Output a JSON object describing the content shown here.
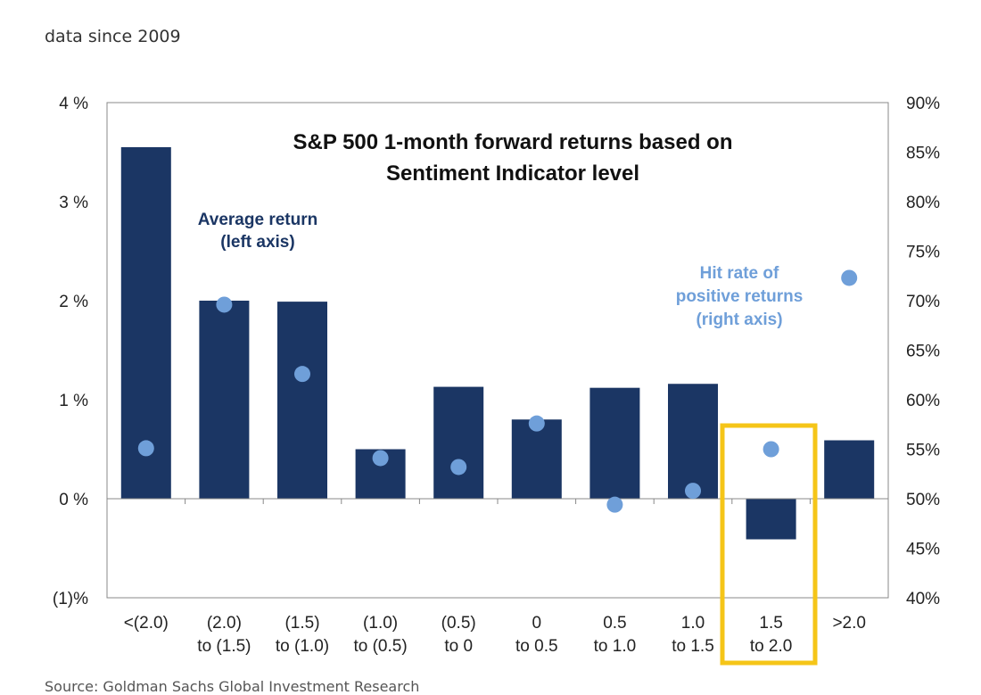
{
  "header": {
    "subtitle": "data since 2009"
  },
  "footer": {
    "source": "Source: Goldman Sachs Global Investment Research"
  },
  "colors": {
    "bar": "#1b3664",
    "dot": "#6f9fd9",
    "highlight": "#f5c518",
    "axis": "#888888"
  },
  "chart_data": {
    "type": "bar",
    "title_lines": [
      "S&P 500 1-month forward returns based on",
      "Sentiment Indicator level"
    ],
    "categories": [
      [
        "<(2.0)"
      ],
      [
        "(2.0)",
        "to (1.5)"
      ],
      [
        "(1.5)",
        "to (1.0)"
      ],
      [
        "(1.0)",
        "to (0.5)"
      ],
      [
        "(0.5)",
        "to 0"
      ],
      [
        "0",
        "to 0.5"
      ],
      [
        "0.5",
        "to 1.0"
      ],
      [
        "1.0",
        "to 1.5"
      ],
      [
        "1.5",
        "to 2.0"
      ],
      [
        ">2.0"
      ]
    ],
    "series": [
      {
        "name": "Average return (left axis)",
        "axis": "left",
        "kind": "bar",
        "values": [
          3.55,
          2.0,
          1.99,
          0.5,
          1.13,
          0.8,
          1.12,
          1.16,
          -0.41,
          0.59
        ]
      },
      {
        "name": "Hit rate of positive returns (right axis)",
        "axis": "right",
        "kind": "scatter",
        "values": [
          55.1,
          69.6,
          62.6,
          54.1,
          53.2,
          57.6,
          49.4,
          50.8,
          55.0,
          72.3
        ]
      }
    ],
    "left_axis": {
      "min": -1,
      "max": 4,
      "ticks": [
        4,
        3,
        2,
        1,
        0,
        -1
      ],
      "tick_labels": [
        "4 %",
        "3 %",
        "2 %",
        "1 %",
        "0 %",
        "(1)%"
      ]
    },
    "right_axis": {
      "min": 40,
      "max": 90,
      "ticks": [
        90,
        85,
        80,
        75,
        70,
        65,
        60,
        55,
        50,
        45,
        40
      ],
      "tick_labels": [
        "90%",
        "85%",
        "80%",
        "75%",
        "70%",
        "65%",
        "60%",
        "55%",
        "50%",
        "45%",
        "40%"
      ]
    },
    "annotations": {
      "average_return": [
        "Average return",
        "(left axis)"
      ],
      "hit_rate": [
        "Hit rate of",
        "positive returns",
        "(right axis)"
      ]
    },
    "highlighted_category": "1.5 to 2.0",
    "grid": false
  }
}
